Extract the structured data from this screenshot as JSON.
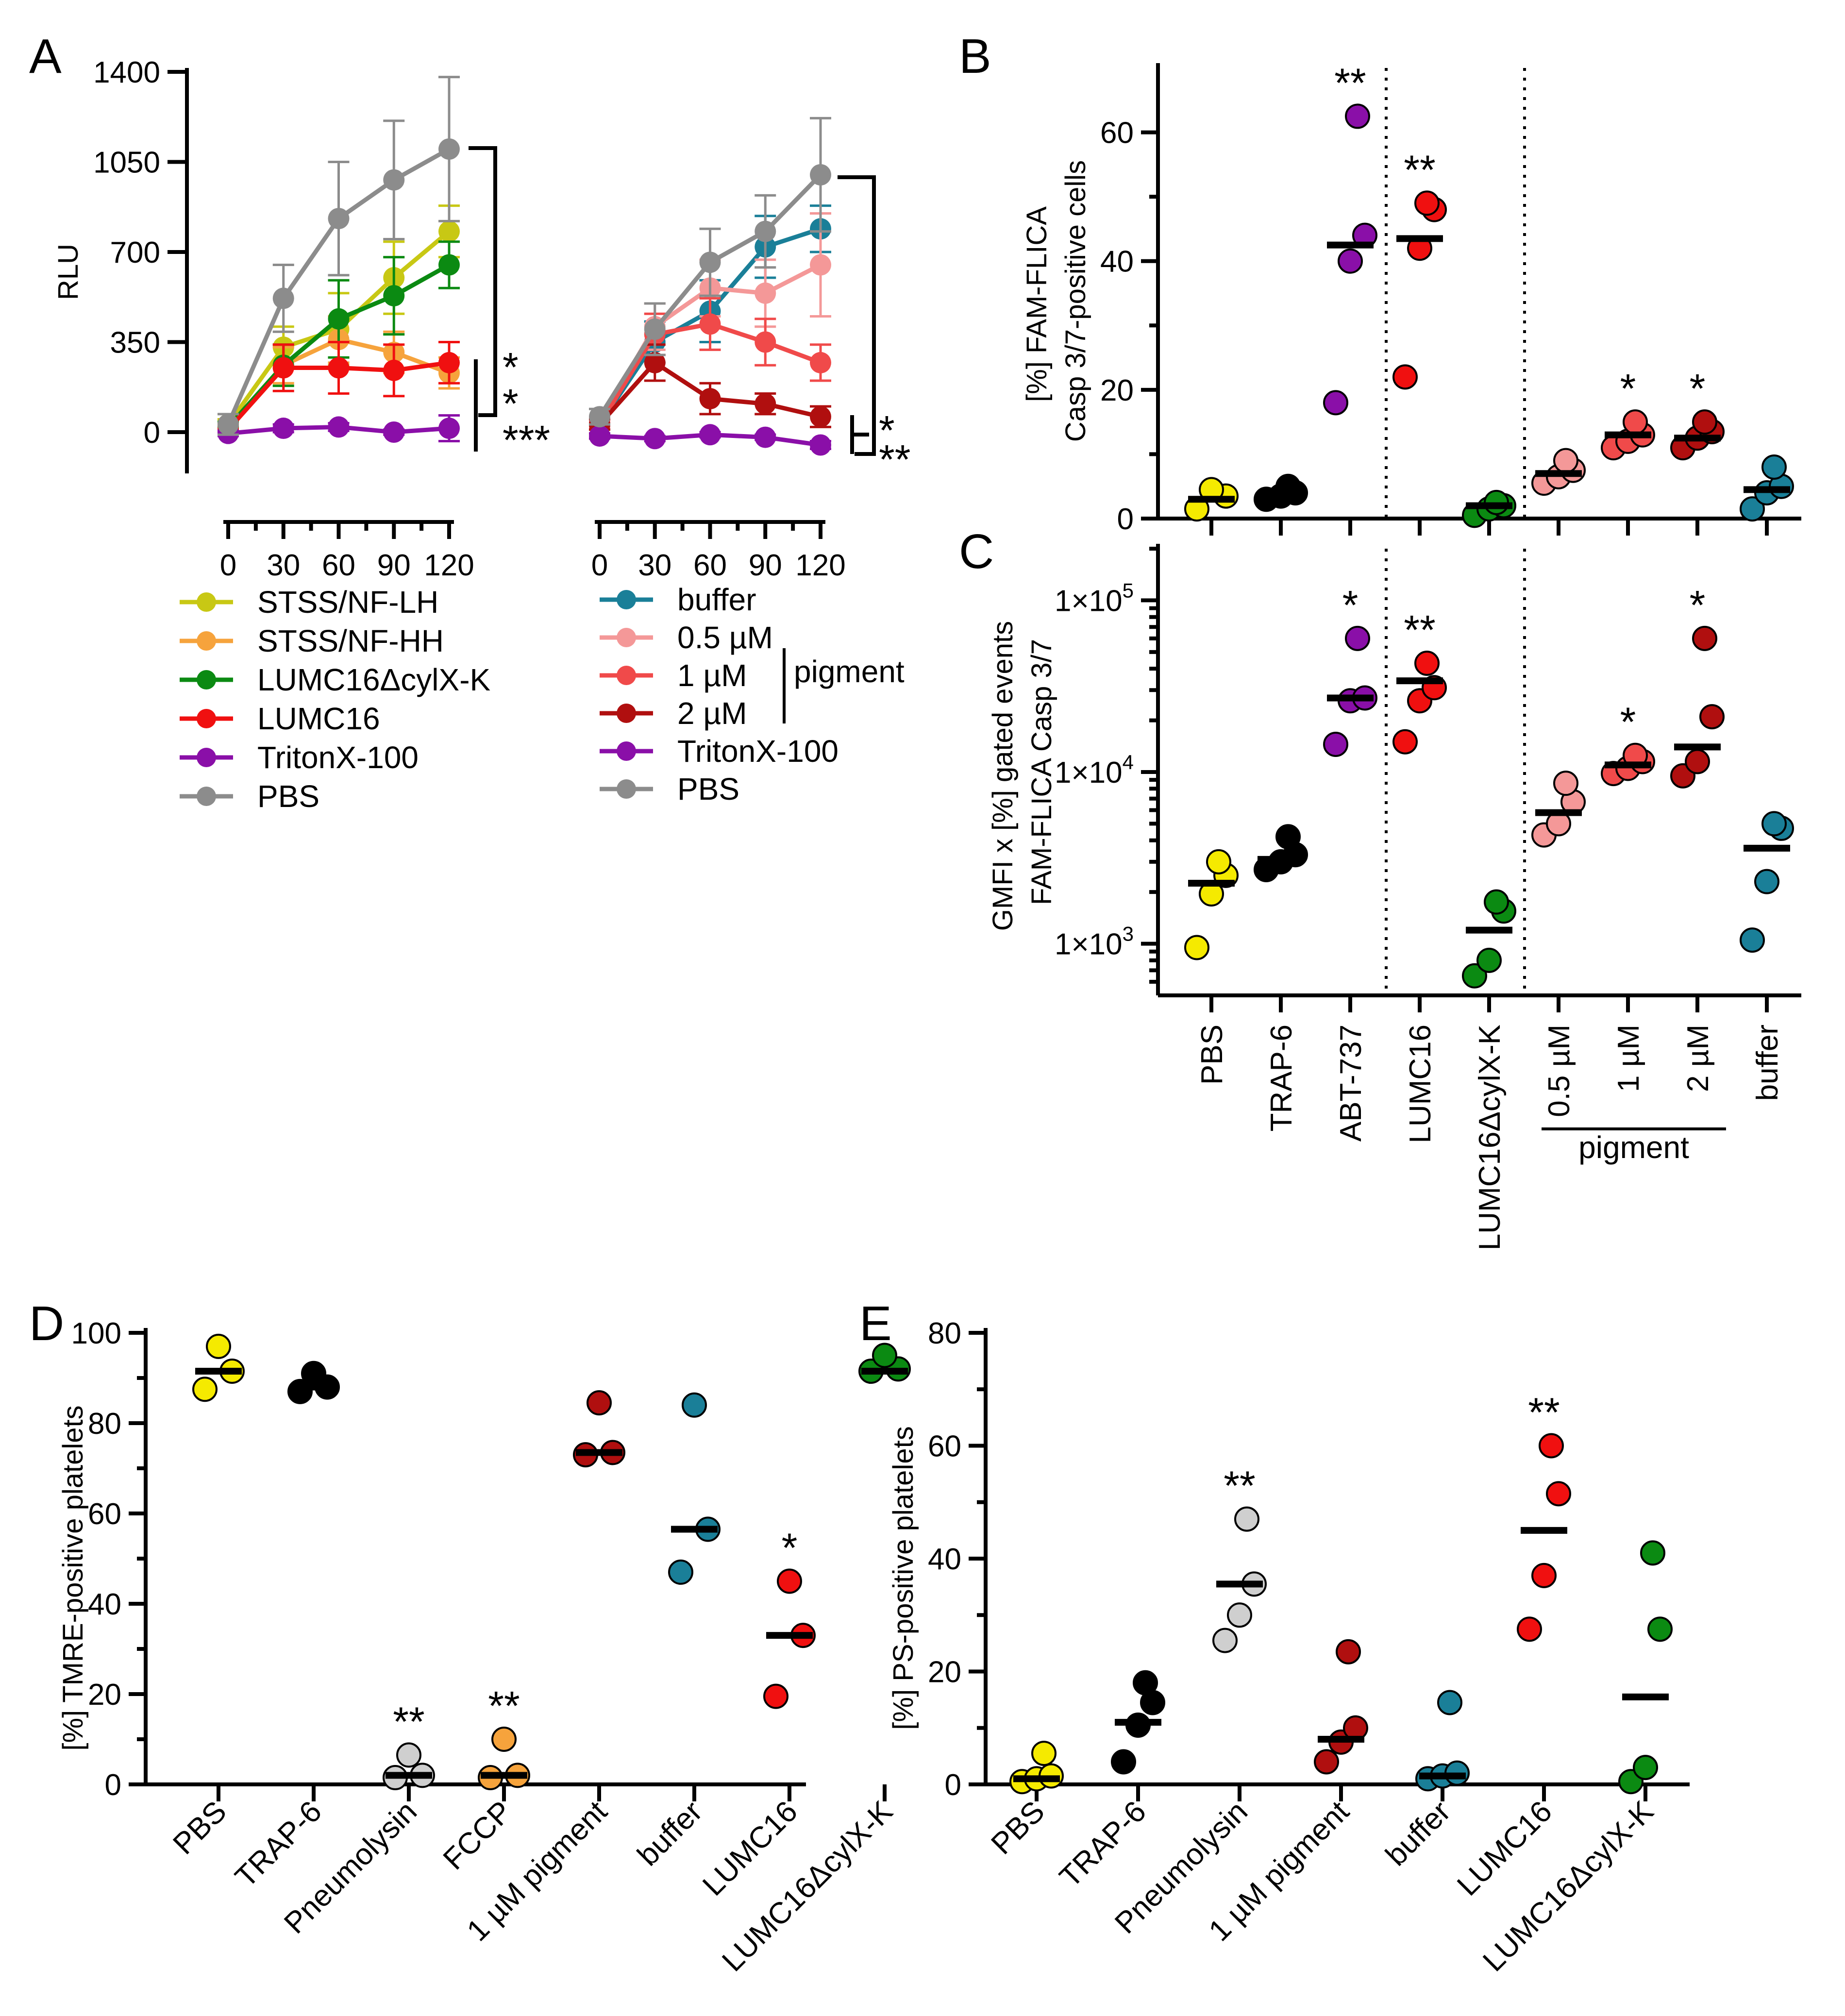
{
  "colors": {
    "yellow": "#f5ea00",
    "black": "#000000",
    "purple": "#8a0fa8",
    "red": "#f01010",
    "green": "#0b8a12",
    "pink": "#f49898",
    "salmon": "#f04a4a",
    "darkred": "#b00f0f",
    "blue": "#1a7f98",
    "grey": "#8c8c8c",
    "lightgrey": "#cfcfcf",
    "orange": "#f6a33c",
    "olive": "#c8c814",
    "gold": "#f6a33c"
  },
  "chart_data": [
    {
      "panel": "A",
      "type": "line",
      "ylabel": "RLU",
      "yticks": [
        0,
        350,
        700,
        1050,
        1400
      ],
      "ylim": [
        -150,
        1400
      ],
      "xticks": [
        0,
        30,
        60,
        90,
        120
      ],
      "left": {
        "series": [
          {
            "name": "STSS/NF-LH",
            "color": "olive",
            "x": [
              0,
              30,
              60,
              90,
              120
            ],
            "y": [
              30,
              330,
              400,
              600,
              780
            ],
            "err": [
              20,
              80,
              140,
              140,
              100
            ]
          },
          {
            "name": "STSS/NF-HH",
            "color": "orange",
            "x": [
              0,
              30,
              60,
              90,
              120
            ],
            "y": [
              20,
              260,
              360,
              310,
              230
            ],
            "err": [
              20,
              70,
              90,
              80,
              60
            ]
          },
          {
            "name": "LUMC16ΔcylX-K",
            "color": "green",
            "x": [
              0,
              30,
              60,
              90,
              120
            ],
            "y": [
              20,
              260,
              440,
              530,
              650
            ],
            "err": [
              20,
              80,
              150,
              150,
              90
            ]
          },
          {
            "name": "LUMC16",
            "color": "red",
            "x": [
              0,
              30,
              60,
              90,
              120
            ],
            "y": [
              10,
              250,
              250,
              240,
              270
            ],
            "err": [
              20,
              90,
              100,
              100,
              80
            ]
          },
          {
            "name": "TritonX-100",
            "color": "purple",
            "x": [
              0,
              30,
              60,
              90,
              120
            ],
            "y": [
              -5,
              15,
              20,
              0,
              15
            ],
            "err": [
              10,
              15,
              15,
              10,
              50
            ]
          },
          {
            "name": "PBS",
            "color": "grey",
            "x": [
              0,
              30,
              60,
              90,
              120
            ],
            "y": [
              30,
              520,
              830,
              980,
              1100
            ],
            "err": [
              40,
              130,
              220,
              230,
              280
            ]
          }
        ],
        "stars": [
          {
            "text": "*",
            "color": "gold"
          },
          {
            "text": "*",
            "color": "red"
          },
          {
            "text": "***",
            "color": "purple"
          }
        ]
      },
      "right": {
        "series": [
          {
            "name": "buffer",
            "color": "blue",
            "x": [
              0,
              30,
              60,
              90,
              120
            ],
            "y": [
              30,
              350,
              470,
              720,
              790
            ],
            "err": [
              20,
              80,
              120,
              120,
              90
            ]
          },
          {
            "name": "0.5 µM",
            "color": "pink",
            "x": [
              0,
              30,
              60,
              90,
              120
            ],
            "y": [
              40,
              410,
              560,
              540,
              650
            ],
            "err": [
              20,
              90,
              110,
              130,
              200
            ]
          },
          {
            "name": "1 µM",
            "color": "salmon",
            "x": [
              0,
              30,
              60,
              90,
              120
            ],
            "y": [
              30,
              380,
              420,
              350,
              270
            ],
            "err": [
              20,
              80,
              100,
              90,
              70
            ]
          },
          {
            "name": "2 µM",
            "color": "darkred",
            "x": [
              0,
              30,
              60,
              90,
              120
            ],
            "y": [
              30,
              270,
              130,
              110,
              60
            ],
            "err": [
              20,
              70,
              60,
              40,
              40
            ]
          },
          {
            "name": "TritonX-100",
            "color": "purple",
            "x": [
              0,
              30,
              60,
              90,
              120
            ],
            "y": [
              -15,
              -25,
              -10,
              -20,
              -50
            ],
            "err": [
              10,
              10,
              10,
              10,
              15
            ]
          },
          {
            "name": "PBS",
            "color": "grey",
            "x": [
              0,
              30,
              60,
              90,
              120
            ],
            "y": [
              60,
              400,
              660,
              780,
              1000
            ],
            "err": [
              30,
              100,
              130,
              140,
              220
            ]
          }
        ],
        "stars": [
          {
            "text": "*",
            "color": "darkred"
          },
          {
            "text": "**",
            "color": "purple"
          }
        ],
        "pigment_label": "pigment"
      }
    },
    {
      "panel": "B",
      "type": "scatter",
      "ylabel_lines": [
        "[%] FAM-FLICA",
        "Casp 3/7-positive cells"
      ],
      "yticks": [
        0,
        20,
        40,
        60
      ],
      "ylim": [
        0,
        70
      ],
      "groups": [
        {
          "color": "yellow",
          "points": [
            1.5,
            3.5,
            4.5
          ],
          "mean": 3
        },
        {
          "color": "black",
          "points": [
            3,
            3.5,
            4,
            5
          ],
          "mean": 3.5
        },
        {
          "color": "purple",
          "points": [
            18,
            40,
            44,
            62.5
          ],
          "mean": 42.5,
          "star": "**"
        },
        {
          "color": "red",
          "points": [
            22,
            42,
            48,
            49
          ],
          "mean": 43.5,
          "star": "**"
        },
        {
          "color": "green",
          "points": [
            0.5,
            1.5,
            2,
            2.5
          ],
          "mean": 2
        },
        {
          "color": "pink",
          "points": [
            5.5,
            6.5,
            7.5,
            9
          ],
          "mean": 7
        },
        {
          "color": "salmon",
          "points": [
            11,
            12,
            13,
            15
          ],
          "mean": 13,
          "star": "*"
        },
        {
          "color": "darkred",
          "points": [
            11,
            12.5,
            13.5,
            15
          ],
          "mean": 12.5,
          "star": "*"
        },
        {
          "color": "blue",
          "points": [
            1.5,
            4,
            5,
            8
          ],
          "mean": 4.5
        }
      ]
    },
    {
      "panel": "C",
      "type": "scatter",
      "ylabel_lines": [
        "GMFI x [%] gated events",
        "FAM-FLICA Casp 3/7"
      ],
      "yscale": "log",
      "yticks": [
        {
          "value": 1000,
          "mantissa": "1×10",
          "exp": "3"
        },
        {
          "value": 10000,
          "mantissa": "1×10",
          "exp": "4"
        },
        {
          "value": 100000,
          "mantissa": "1×10",
          "exp": "5"
        }
      ],
      "ylim": [
        500,
        200000
      ],
      "categories": [
        "PBS",
        "TRAP-6",
        "ABT-737",
        "LUMC16",
        "LUMC16ΔcylX-K",
        "0.5 µM",
        "1 µM",
        "2 µM",
        "buffer"
      ],
      "pigment_label": "pigment",
      "groups": [
        {
          "color": "yellow",
          "points": [
            950,
            1950,
            2500,
            3000
          ],
          "mean": 2250
        },
        {
          "color": "black",
          "points": [
            2700,
            3000,
            3300,
            4200
          ],
          "mean": 3100
        },
        {
          "color": "purple",
          "points": [
            14500,
            26000,
            27000,
            60000
          ],
          "mean": 27000,
          "star": "*"
        },
        {
          "color": "red",
          "points": [
            15000,
            26000,
            31000,
            43000
          ],
          "mean": 34000,
          "star": "**"
        },
        {
          "color": "green",
          "points": [
            650,
            800,
            1550,
            1750
          ],
          "mean": 1200
        },
        {
          "color": "pink",
          "points": [
            4300,
            5000,
            6700,
            8600
          ],
          "mean": 5800
        },
        {
          "color": "salmon",
          "points": [
            9800,
            10500,
            11500,
            12500
          ],
          "mean": 11000,
          "star": "*"
        },
        {
          "color": "darkred",
          "points": [
            9500,
            11500,
            21000,
            60000
          ],
          "mean": 14000,
          "star": "*"
        },
        {
          "color": "blue",
          "points": [
            1050,
            2300,
            4700,
            5000
          ],
          "mean": 3600
        }
      ]
    },
    {
      "panel": "D",
      "type": "scatter",
      "ylabel": "[%] TMRE-positive platelets",
      "yticks": [
        0,
        20,
        40,
        60,
        80,
        100
      ],
      "ylim": [
        0,
        100
      ],
      "categories": [
        "PBS",
        "TRAP-6",
        "Pneumolysin",
        "FCCP",
        "1 µM pigment",
        "buffer",
        "LUMC16",
        "LUMC16ΔcylX-K"
      ],
      "groups": [
        {
          "color": "yellow",
          "points": [
            87.5,
            91.5,
            97
          ],
          "mean": 91.5
        },
        {
          "color": "black",
          "points": [
            87,
            88,
            91
          ],
          "mean": 88
        },
        {
          "color": "lightgrey",
          "points": [
            1.5,
            2,
            6.5
          ],
          "mean": 2,
          "star": "**"
        },
        {
          "color": "orange",
          "points": [
            1.5,
            2,
            10
          ],
          "mean": 2,
          "star": "**"
        },
        {
          "color": "darkred",
          "points": [
            73,
            73.5,
            84.5
          ],
          "mean": 73.5
        },
        {
          "color": "blue",
          "points": [
            47,
            56.5,
            84
          ],
          "mean": 56.5
        },
        {
          "color": "red",
          "points": [
            19.5,
            33,
            45
          ],
          "mean": 33,
          "star": "*"
        },
        {
          "color": "green",
          "points": [
            91.5,
            92,
            95
          ],
          "mean": 91.5
        }
      ]
    },
    {
      "panel": "E",
      "type": "scatter",
      "ylabel": "[%] PS-positive platelets",
      "yticks": [
        0,
        20,
        40,
        60,
        80
      ],
      "ylim": [
        0,
        80
      ],
      "categories": [
        "PBS",
        "TRAP-6",
        "Pneumolysin",
        "1 µM pigment",
        "buffer",
        "LUMC16",
        "LUMC16ΔcylX-K"
      ],
      "groups": [
        {
          "color": "yellow",
          "points": [
            0.5,
            1,
            1.5,
            5.5
          ],
          "mean": 1
        },
        {
          "color": "black",
          "points": [
            4,
            10.5,
            14.5,
            18
          ],
          "mean": 11
        },
        {
          "color": "lightgrey",
          "points": [
            25.5,
            30,
            35.5,
            47
          ],
          "mean": 35.5,
          "star": "**"
        },
        {
          "color": "darkred",
          "points": [
            4,
            7.5,
            10,
            23.5
          ],
          "mean": 8
        },
        {
          "color": "blue",
          "points": [
            1,
            1.5,
            2,
            14.5
          ],
          "mean": 1.5
        },
        {
          "color": "red",
          "points": [
            27.5,
            37,
            51.5,
            60
          ],
          "mean": 45,
          "star": "**"
        },
        {
          "color": "green",
          "points": [
            0.5,
            3,
            27.5,
            41
          ],
          "mean": 15.5
        }
      ]
    }
  ]
}
